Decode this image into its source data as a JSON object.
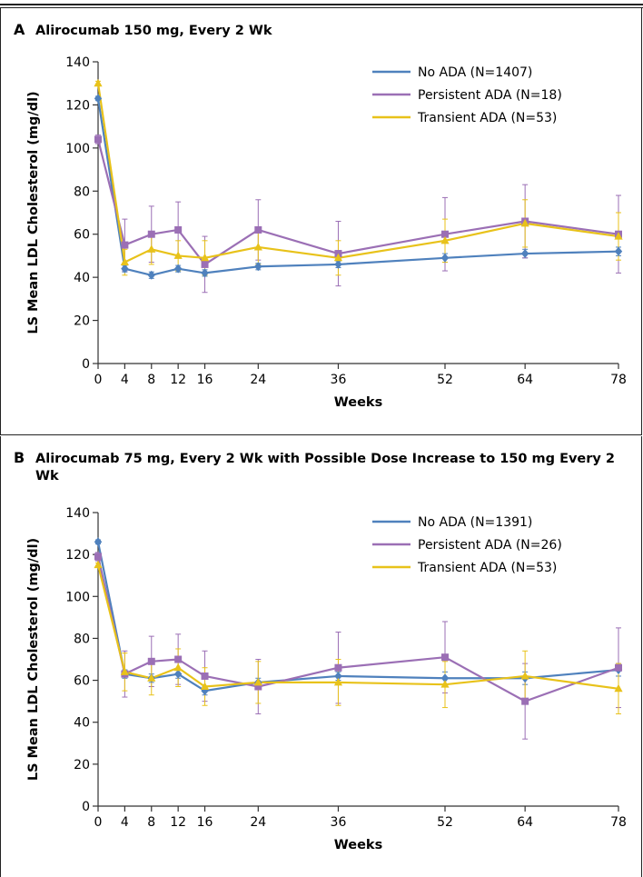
{
  "colors": {
    "no_ada": "#4F81BD",
    "persistent_ada": "#9B6FB5",
    "transient_ada": "#E8C21A",
    "axis": "#333333"
  },
  "icons": {
    "no_ada": "diamond-marker",
    "persistent_ada": "square-marker",
    "transient_ada": "triangle-marker"
  },
  "chart_data": [
    {
      "panel_label": "A",
      "title": "Alirocumab 150 mg, Every 2 Wk",
      "type": "line",
      "xlabel": "Weeks",
      "ylabel": "LS Mean LDL Cholesterol (mg/dl)",
      "xlim": [
        0,
        78
      ],
      "ylim": [
        0,
        140
      ],
      "xticks": [
        0,
        4,
        8,
        12,
        16,
        24,
        36,
        52,
        64,
        78
      ],
      "yticks": [
        0,
        20,
        40,
        60,
        80,
        100,
        120,
        140
      ],
      "legend_position": "top-right",
      "x": [
        0,
        4,
        8,
        12,
        16,
        24,
        36,
        52,
        64,
        78
      ],
      "series": [
        {
          "key": "no_ada",
          "name": "No ADA (N=1407)",
          "values": [
            123,
            44,
            41,
            44,
            42,
            45,
            46,
            49,
            51,
            52
          ],
          "error": [
            1,
            1.5,
            1.5,
            1.5,
            1.5,
            1.5,
            1.5,
            2,
            2,
            2
          ]
        },
        {
          "key": "persistent_ada",
          "name": "Persistent ADA (N=18)",
          "values": [
            104,
            55,
            60,
            62,
            46,
            62,
            51,
            60,
            66,
            60
          ],
          "error": [
            2,
            12,
            13,
            13,
            13,
            14,
            15,
            17,
            17,
            18
          ]
        },
        {
          "key": "transient_ada",
          "name": "Transient ADA (N=53)",
          "values": [
            130,
            47,
            53,
            50,
            49,
            54,
            49,
            57,
            65,
            59
          ],
          "error": [
            1,
            6,
            7,
            7,
            8,
            8,
            8,
            10,
            11,
            11
          ]
        }
      ]
    },
    {
      "panel_label": "B",
      "title": "Alirocumab 75 mg, Every 2 Wk with Possible Dose Increase to 150 mg Every 2 Wk",
      "type": "line",
      "xlabel": "Weeks",
      "ylabel": "LS Mean LDL Cholesterol (mg/dl)",
      "xlim": [
        0,
        78
      ],
      "ylim": [
        0,
        140
      ],
      "xticks": [
        0,
        4,
        8,
        12,
        16,
        24,
        36,
        52,
        64,
        78
      ],
      "yticks": [
        0,
        20,
        40,
        60,
        80,
        100,
        120,
        140
      ],
      "legend_position": "top-right",
      "x": [
        0,
        4,
        8,
        12,
        16,
        24,
        36,
        52,
        64,
        78
      ],
      "series": [
        {
          "key": "no_ada",
          "name": "No ADA (N=1391)",
          "values": [
            126,
            63,
            61,
            63,
            55,
            59,
            62,
            61,
            61,
            65
          ],
          "error": [
            1,
            2,
            2,
            2,
            2,
            2,
            2,
            3,
            3,
            3
          ]
        },
        {
          "key": "persistent_ada",
          "name": "Persistent ADA (N=26)",
          "values": [
            119,
            63,
            69,
            70,
            62,
            57,
            66,
            71,
            50,
            66
          ],
          "error": [
            2,
            11,
            12,
            12,
            12,
            13,
            17,
            17,
            18,
            19
          ]
        },
        {
          "key": "transient_ada",
          "name": "Transient ADA (N=53)",
          "values": [
            115,
            64,
            61,
            66,
            57,
            59,
            59,
            58,
            62,
            56
          ],
          "error": [
            1,
            9,
            8,
            9,
            9,
            10,
            11,
            11,
            12,
            12
          ]
        }
      ]
    }
  ]
}
